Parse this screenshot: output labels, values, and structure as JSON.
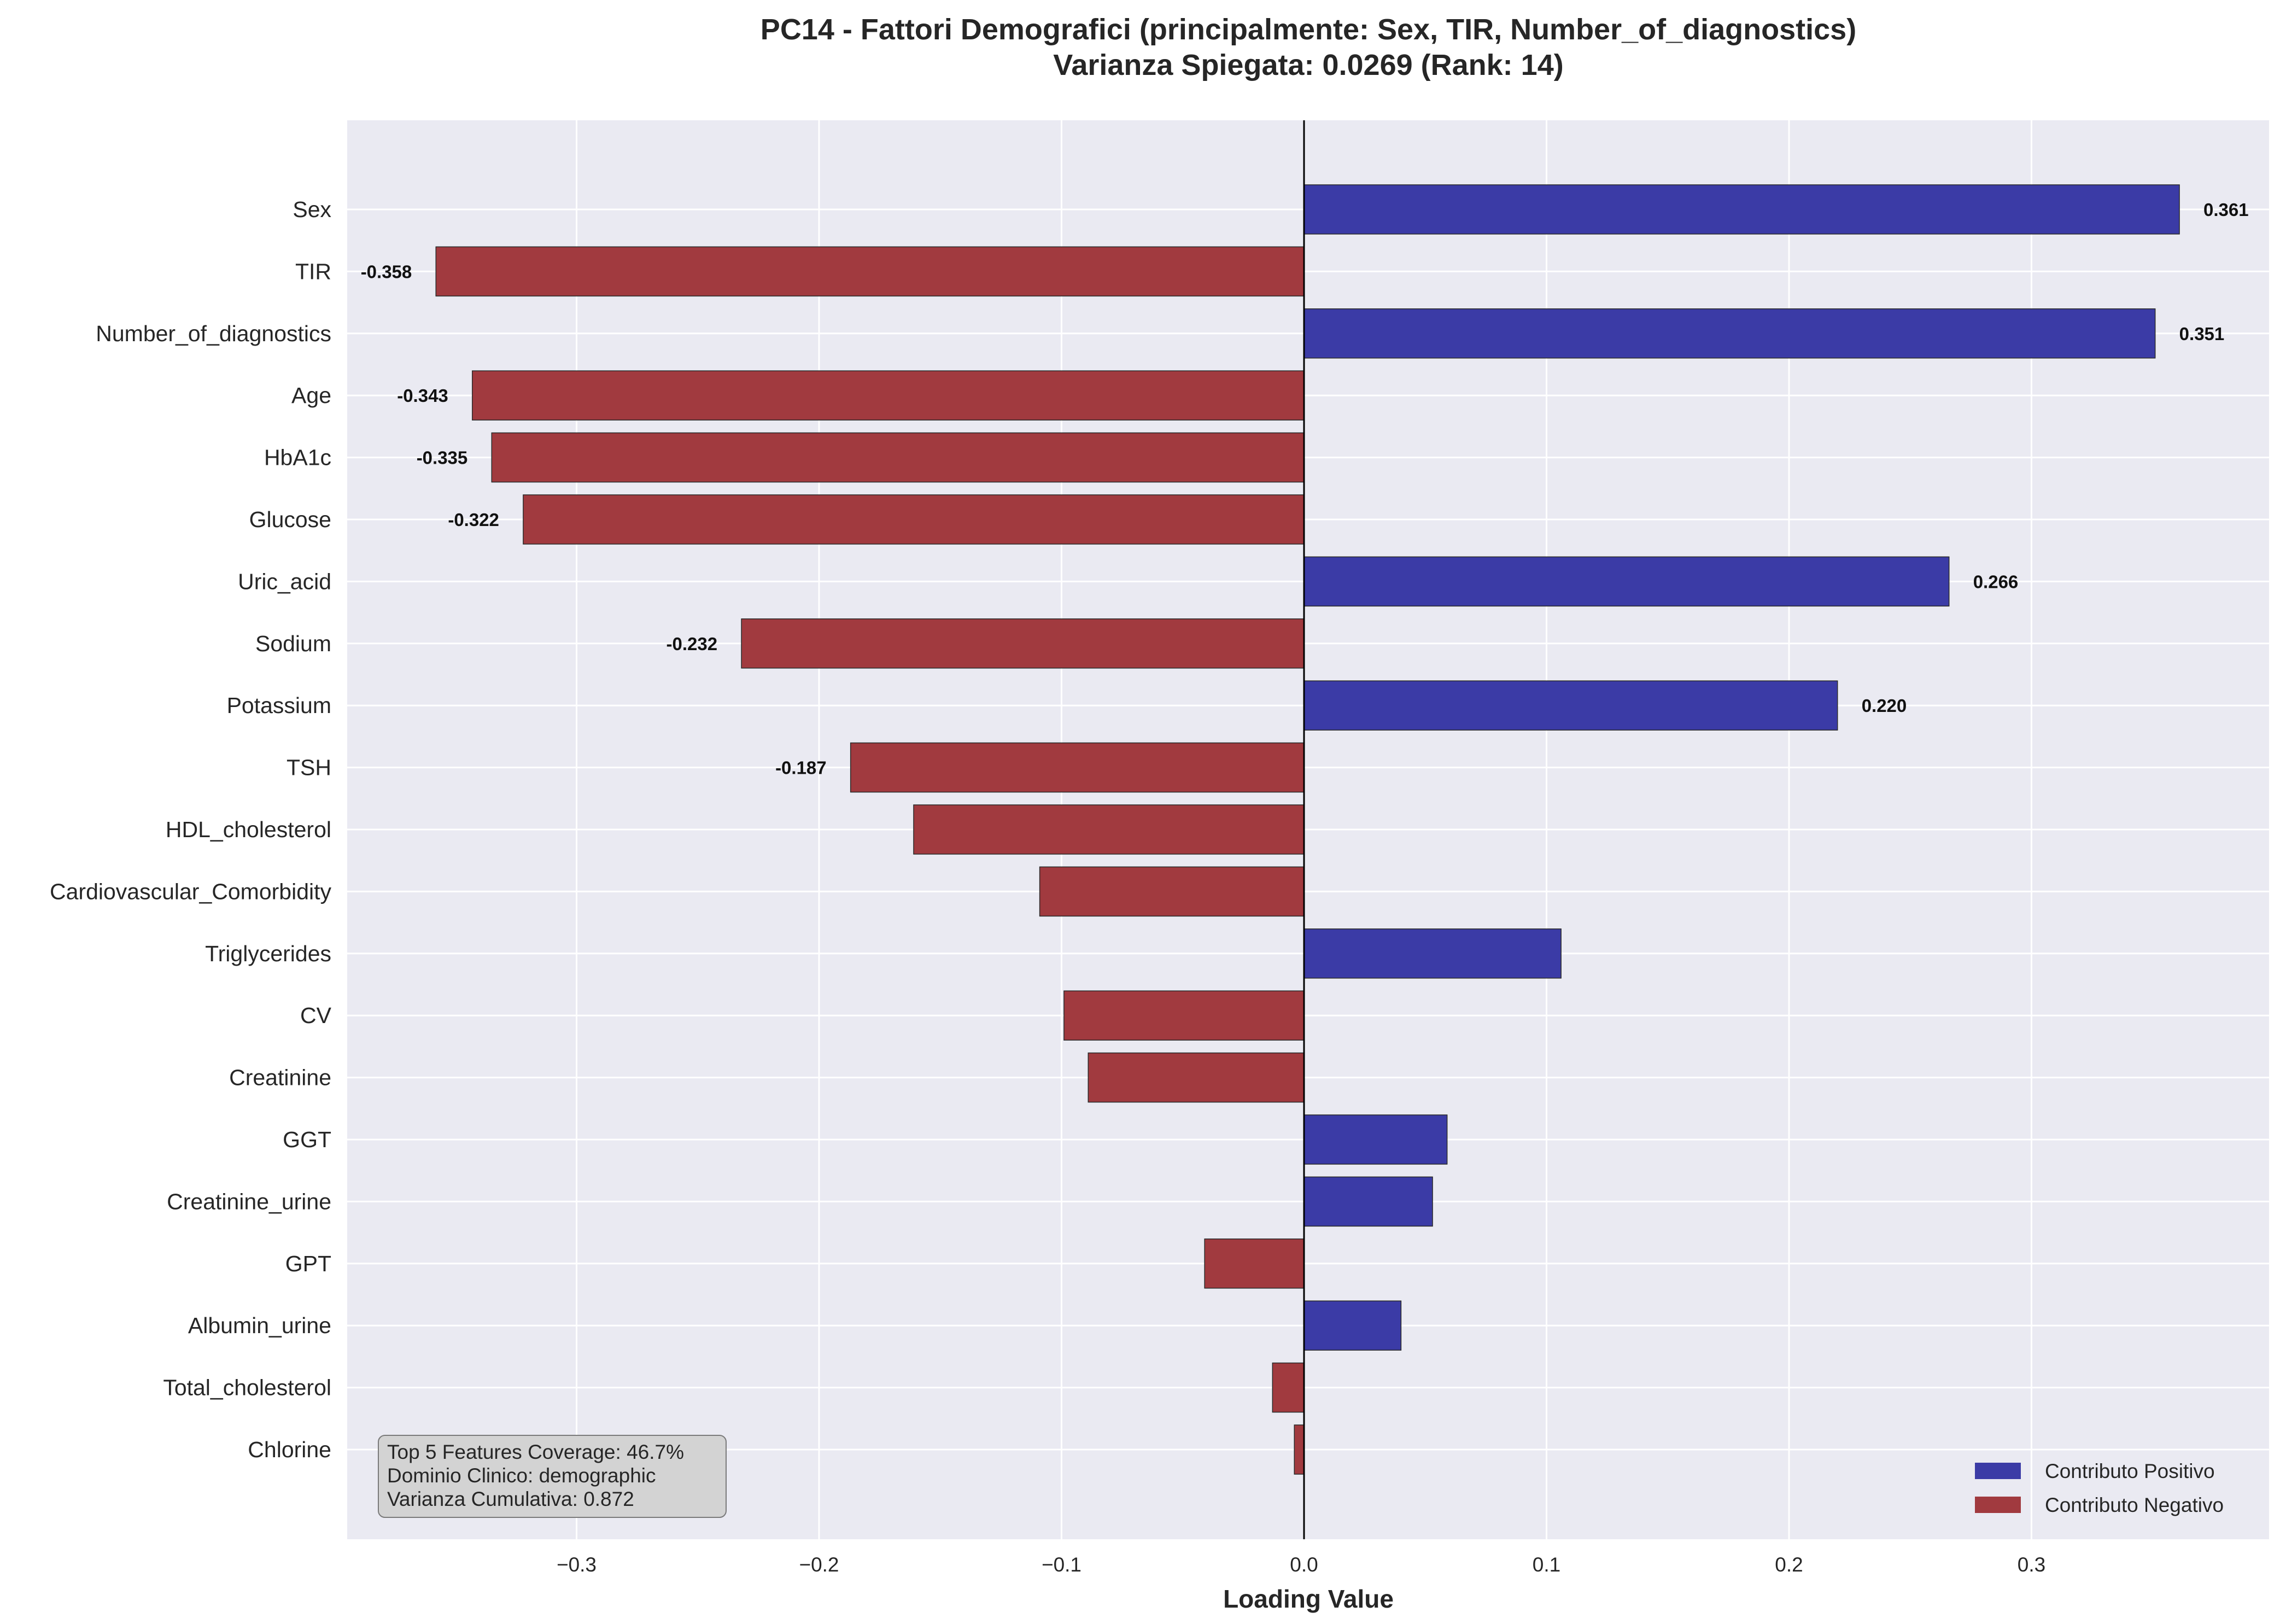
{
  "chart_data": {
    "type": "bar",
    "orientation": "horizontal",
    "title_line1": "PC14 - Fattori Demografici (principalmente: Sex, TIR, Number_of_diagnostics)",
    "title_line2": "Varianza Spiegata: 0.0269 (Rank: 14)",
    "xlabel": "Loading Value",
    "ylabel": "",
    "xlim": [
      -0.395,
      0.4
    ],
    "xticks": [
      -0.3,
      -0.2,
      -0.1,
      0.0,
      0.1,
      0.2,
      0.3
    ],
    "xtick_labels": [
      "−0.3",
      "−0.2",
      "−0.1",
      "0.0",
      "0.1",
      "0.2",
      "0.3"
    ],
    "grid": true,
    "legend_position": "bottom-right",
    "colors": {
      "positive": "#3b3ba6",
      "negative": "#a13a3f",
      "plot_background": "#eaeaf2",
      "grid": "#ffffff",
      "zero_line": "#000000"
    },
    "categories": [
      "Sex",
      "TIR",
      "Number_of_diagnostics",
      "Age",
      "HbA1c",
      "Glucose",
      "Uric_acid",
      "Sodium",
      "Potassium",
      "TSH",
      "HDL_cholesterol",
      "Cardiovascular_Comorbidity",
      "Triglycerides",
      "CV",
      "Creatinine",
      "GGT",
      "Creatinine_urine",
      "GPT",
      "Albumin_urine",
      "Total_cholesterol",
      "Chlorine"
    ],
    "values": [
      0.361,
      -0.358,
      0.351,
      -0.343,
      -0.335,
      -0.322,
      0.266,
      -0.232,
      0.22,
      -0.187,
      -0.161,
      -0.109,
      0.106,
      -0.099,
      -0.089,
      0.059,
      0.053,
      -0.041,
      0.04,
      -0.013,
      -0.004
    ],
    "value_labels": [
      "0.361",
      "-0.358",
      "0.351",
      "-0.343",
      "-0.335",
      "-0.322",
      "0.266",
      "-0.232",
      "0.220",
      "-0.187",
      "",
      "",
      "",
      "",
      "",
      "",
      "",
      "",
      "",
      "",
      ""
    ],
    "legend": [
      {
        "label": "Contributo Positivo",
        "color": "#3b3ba6"
      },
      {
        "label": "Contributo Negativo",
        "color": "#a13a3f"
      }
    ],
    "info_box": [
      "Top 5 Features Coverage: 46.7%",
      "Dominio Clinico: demographic",
      "Varianza Cumulativa: 0.872"
    ]
  }
}
